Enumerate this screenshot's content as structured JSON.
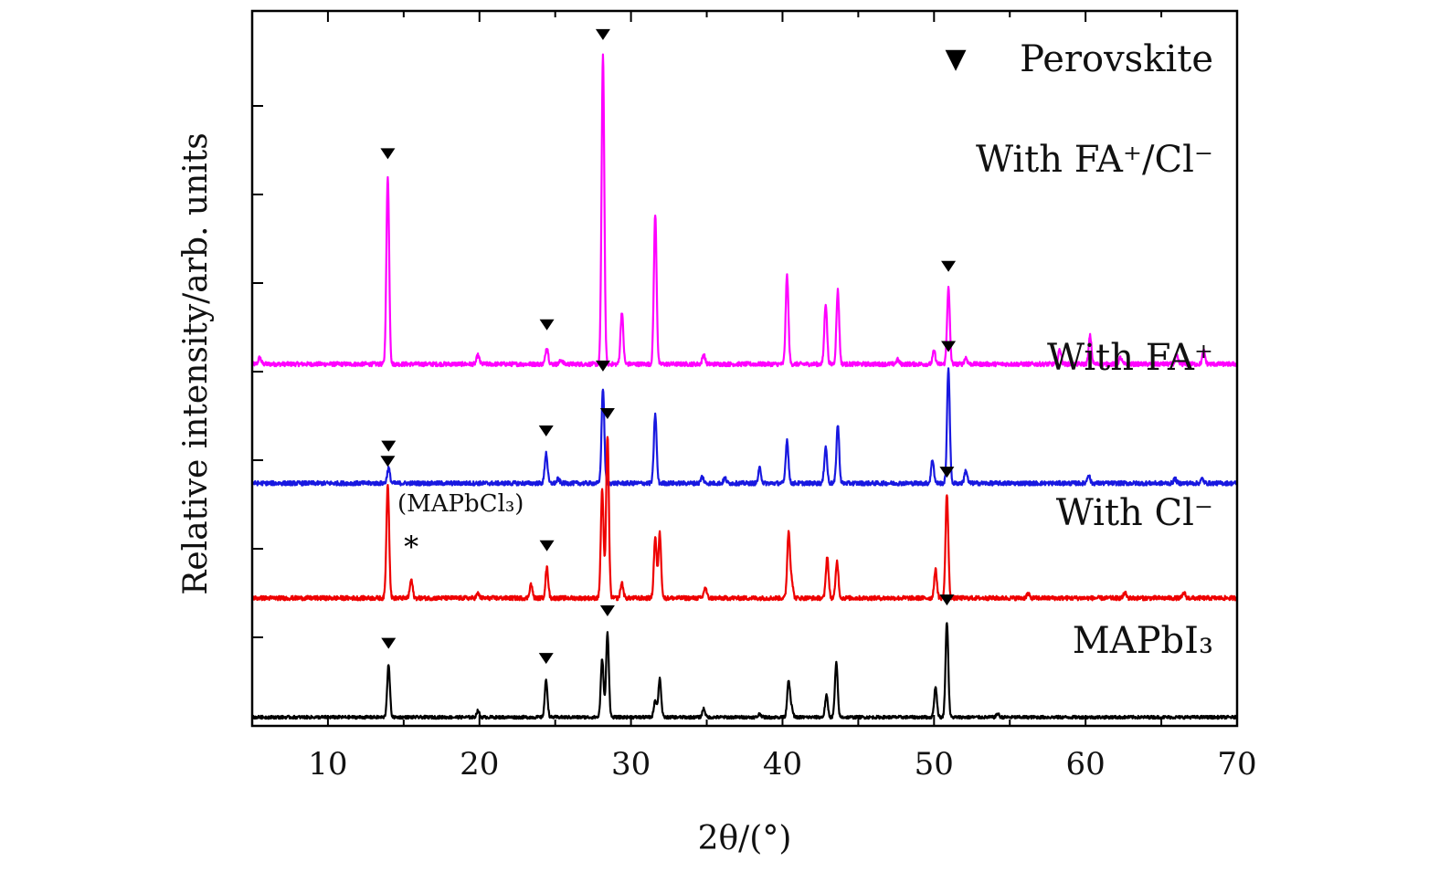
{
  "chart_data": {
    "type": "line",
    "xlabel": "2θ/(°)",
    "ylabel": "Relative intensity/arb. units",
    "xlim": [
      5,
      70
    ],
    "xticks": [
      "10",
      "20",
      "30",
      "40",
      "50",
      "60",
      "70"
    ],
    "x_minor_step": 5,
    "y_ticks_labeled": false,
    "legend": {
      "marker": "▼",
      "label": "Perovskite",
      "placement": "top-right"
    },
    "annotations": [
      {
        "text": "(MAPbCl₃)",
        "x": 16.3
      },
      {
        "text": "*",
        "x": 15.5
      }
    ],
    "series": [
      {
        "name": "With FA⁺/Cl⁻",
        "color": "#ff00ff",
        "baseline": 8.35,
        "noise": 0.05,
        "peaks": [
          [
            5.5,
            0.15
          ],
          [
            13.95,
            4.35
          ],
          [
            19.9,
            0.2
          ],
          [
            24.45,
            0.4
          ],
          [
            25.4,
            0.1
          ],
          [
            28.15,
            7.1
          ],
          [
            29.4,
            1.2
          ],
          [
            31.6,
            3.45
          ],
          [
            34.8,
            0.22
          ],
          [
            40.3,
            2.05
          ],
          [
            42.85,
            1.4
          ],
          [
            43.65,
            1.7
          ],
          [
            47.6,
            0.1
          ],
          [
            50.0,
            0.3
          ],
          [
            50.95,
            1.75
          ],
          [
            52.1,
            0.15
          ],
          [
            58.3,
            0.35
          ],
          [
            60.3,
            0.65
          ],
          [
            62.3,
            0.15
          ],
          [
            66.0,
            0.2
          ],
          [
            67.8,
            0.3
          ]
        ],
        "markers": [
          13.95,
          24.45,
          28.15,
          50.95
        ]
      },
      {
        "name": "With FA⁺",
        "color": "#1818e0",
        "baseline": 5.6,
        "noise": 0.05,
        "peaks": [
          [
            14.0,
            0.35
          ],
          [
            24.4,
            0.7
          ],
          [
            25.2,
            0.1
          ],
          [
            28.15,
            2.2
          ],
          [
            31.6,
            1.6
          ],
          [
            34.7,
            0.15
          ],
          [
            36.2,
            0.12
          ],
          [
            38.5,
            0.35
          ],
          [
            40.3,
            1.0
          ],
          [
            42.85,
            0.85
          ],
          [
            43.65,
            1.35
          ],
          [
            49.9,
            0.55
          ],
          [
            50.95,
            2.65
          ],
          [
            52.1,
            0.3
          ],
          [
            60.2,
            0.2
          ],
          [
            65.9,
            0.1
          ],
          [
            67.7,
            0.1
          ]
        ],
        "markers": [
          14.0,
          24.4,
          28.15,
          50.95
        ]
      },
      {
        "name": "With Cl⁻",
        "color": "#ee0000",
        "baseline": 2.95,
        "noise": 0.05,
        "peaks": [
          [
            13.95,
            2.65
          ],
          [
            15.5,
            0.42
          ],
          [
            19.9,
            0.1
          ],
          [
            23.4,
            0.32
          ],
          [
            24.45,
            0.7
          ],
          [
            28.1,
            2.5
          ],
          [
            28.45,
            3.75
          ],
          [
            29.4,
            0.35
          ],
          [
            31.6,
            1.4
          ],
          [
            31.9,
            1.5
          ],
          [
            34.9,
            0.25
          ],
          [
            40.4,
            1.5
          ],
          [
            40.6,
            0.4
          ],
          [
            42.95,
            0.95
          ],
          [
            43.6,
            0.85
          ],
          [
            50.1,
            0.65
          ],
          [
            50.85,
            2.4
          ],
          [
            56.2,
            0.1
          ],
          [
            62.6,
            0.12
          ],
          [
            66.5,
            0.12
          ]
        ],
        "markers": [
          13.95,
          24.45,
          28.45,
          50.85
        ]
      },
      {
        "name": "MAPbI₃",
        "color": "#000000",
        "baseline": 0.2,
        "noise": 0.035,
        "peaks": [
          [
            14.0,
            1.2
          ],
          [
            19.9,
            0.15
          ],
          [
            24.4,
            0.85
          ],
          [
            28.1,
            1.35
          ],
          [
            28.45,
            1.95
          ],
          [
            31.6,
            0.4
          ],
          [
            31.9,
            0.9
          ],
          [
            34.8,
            0.2
          ],
          [
            38.5,
            0.08
          ],
          [
            40.4,
            0.85
          ],
          [
            40.6,
            0.2
          ],
          [
            42.9,
            0.5
          ],
          [
            43.55,
            1.25
          ],
          [
            50.1,
            0.7
          ],
          [
            50.85,
            2.2
          ],
          [
            54.2,
            0.08
          ]
        ],
        "markers": [
          14.0,
          24.4,
          28.45,
          50.85
        ]
      }
    ]
  }
}
